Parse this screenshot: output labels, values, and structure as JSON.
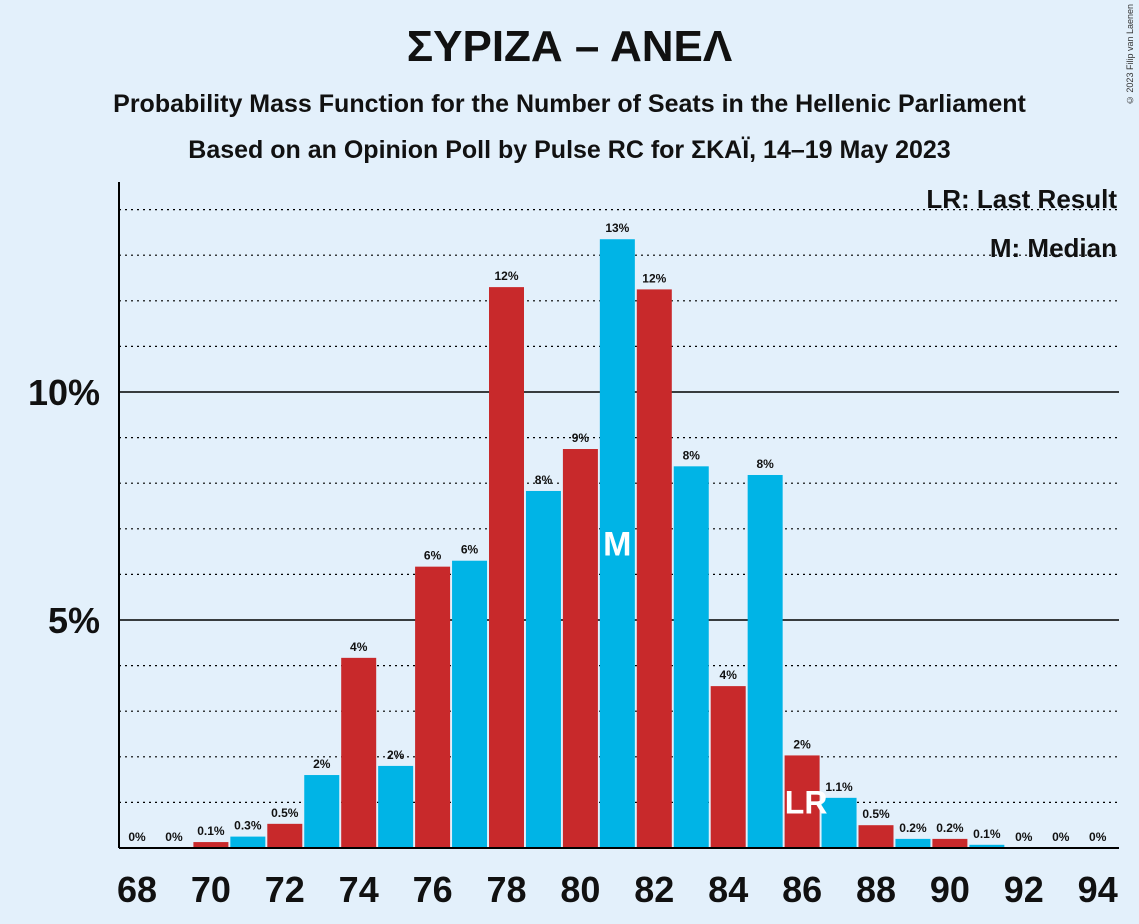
{
  "title": "ΣΥΡΙΖΑ – ΑΝΕΛ",
  "subtitle1": "Probability Mass Function for the Number of Seats in the Hellenic Parliament",
  "subtitle2": "Based on an Opinion Poll by Pulse RC for ΣΚΑΪ, 14–19 May 2023",
  "copyright": "© 2023 Filip van Laenen",
  "legend": {
    "last_result": "LR: Last Result",
    "median": "M: Median"
  },
  "colors": {
    "red": "#c8292b",
    "blue": "#00b4e6",
    "background": "#e3f0fb"
  },
  "chart_data": {
    "type": "bar",
    "xlabel": "",
    "ylabel": "",
    "ylim": [
      0,
      14.5
    ],
    "y_major_ticks": [
      {
        "value": 5,
        "label": "5%"
      },
      {
        "value": 10,
        "label": "10%"
      }
    ],
    "y_minor_grid_step": 1,
    "x_tick_labels": [
      "68",
      "70",
      "72",
      "74",
      "76",
      "78",
      "80",
      "82",
      "84",
      "86",
      "88",
      "90",
      "92",
      "94"
    ],
    "median_seat": 81,
    "median_marker": "M",
    "last_result_seat": 86,
    "last_result_marker": "LR",
    "bars": [
      {
        "seat": 68,
        "value": 0,
        "label": "0%",
        "color": "blue"
      },
      {
        "seat": 69,
        "value": 0,
        "label": "0%",
        "color": "blue"
      },
      {
        "seat": 70,
        "value": 0.13,
        "label": "0.1%",
        "color": "red"
      },
      {
        "seat": 71,
        "value": 0.25,
        "label": "0.3%",
        "color": "blue"
      },
      {
        "seat": 72,
        "value": 0.53,
        "label": "0.5%",
        "color": "red"
      },
      {
        "seat": 73,
        "value": 1.6,
        "label": "2%",
        "color": "blue"
      },
      {
        "seat": 74,
        "value": 4.17,
        "label": "4%",
        "color": "red"
      },
      {
        "seat": 75,
        "value": 1.8,
        "label": "2%",
        "color": "blue"
      },
      {
        "seat": 76,
        "value": 6.17,
        "label": "6%",
        "color": "red"
      },
      {
        "seat": 77,
        "value": 6.3,
        "label": "6%",
        "color": "blue"
      },
      {
        "seat": 78,
        "value": 12.3,
        "label": "12%",
        "color": "red"
      },
      {
        "seat": 79,
        "value": 7.83,
        "label": "8%",
        "color": "blue"
      },
      {
        "seat": 80,
        "value": 8.75,
        "label": "9%",
        "color": "red"
      },
      {
        "seat": 81,
        "value": 13.35,
        "label": "13%",
        "color": "blue"
      },
      {
        "seat": 82,
        "value": 12.25,
        "label": "12%",
        "color": "red"
      },
      {
        "seat": 83,
        "value": 8.37,
        "label": "8%",
        "color": "blue"
      },
      {
        "seat": 84,
        "value": 3.55,
        "label": "4%",
        "color": "red"
      },
      {
        "seat": 85,
        "value": 8.18,
        "label": "8%",
        "color": "blue"
      },
      {
        "seat": 86,
        "value": 2.03,
        "label": "2%",
        "color": "red"
      },
      {
        "seat": 87,
        "value": 1.1,
        "label": "1.1%",
        "color": "blue"
      },
      {
        "seat": 88,
        "value": 0.5,
        "label": "0.5%",
        "color": "red"
      },
      {
        "seat": 89,
        "value": 0.2,
        "label": "0.2%",
        "color": "blue"
      },
      {
        "seat": 90,
        "value": 0.2,
        "label": "0.2%",
        "color": "red"
      },
      {
        "seat": 91,
        "value": 0.07,
        "label": "0.1%",
        "color": "blue"
      },
      {
        "seat": 92,
        "value": 0,
        "label": "0%",
        "color": "red"
      },
      {
        "seat": 93,
        "value": 0,
        "label": "0%",
        "color": "blue"
      },
      {
        "seat": 94,
        "value": 0,
        "label": "0%",
        "color": "red"
      }
    ]
  }
}
